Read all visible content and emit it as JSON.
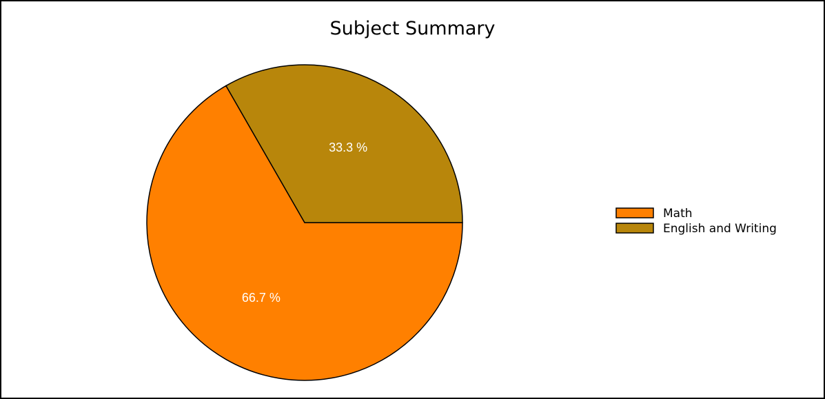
{
  "chart_data": {
    "type": "pie",
    "title": "Subject Summary",
    "categories": [
      "Math",
      "English and Writing"
    ],
    "values": [
      66.7,
      33.3
    ],
    "labels": [
      "66.7 %",
      "33.3 %"
    ],
    "colors": [
      "#ff8000",
      "#b8860b"
    ],
    "legend": {
      "position": "right",
      "entries": [
        "Math",
        "English and Writing"
      ]
    }
  }
}
